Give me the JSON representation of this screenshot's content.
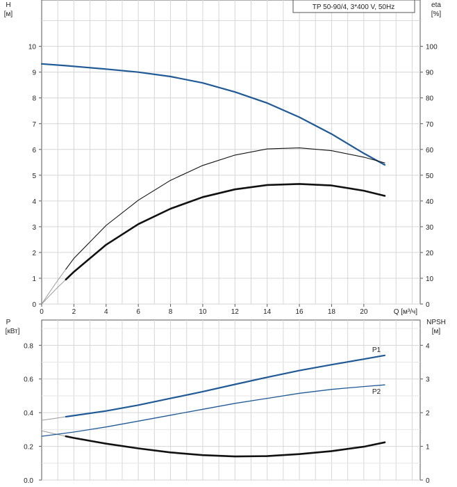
{
  "chart_data": [
    {
      "type": "line",
      "title": "TP 50-90/4, 3*400 V, 50Hz",
      "x_axis": {
        "label": "Q [м³/ч]",
        "range": [
          0,
          23.5
        ],
        "ticks": [
          0,
          2,
          4,
          6,
          8,
          10,
          12,
          14,
          16,
          18,
          20
        ]
      },
      "y_left": {
        "label": "H",
        "unit": "[м]",
        "range": [
          0,
          11.8
        ],
        "ticks": [
          0,
          1,
          2,
          3,
          4,
          5,
          6,
          7,
          8,
          9,
          10
        ]
      },
      "y_right": {
        "label": "eta",
        "unit": "[%]",
        "range": [
          0,
          118
        ],
        "ticks": [
          0,
          10,
          20,
          30,
          40,
          50,
          60,
          70,
          80,
          90,
          100
        ]
      },
      "grid": true,
      "series": [
        {
          "axis": "left",
          "color": "#1f5a96",
          "width": 2.2,
          "points": [
            [
              0,
              9.32
            ],
            [
              1.5,
              9.25
            ],
            [
              4,
              9.12
            ],
            [
              6,
              9.0
            ],
            [
              8,
              8.83
            ],
            [
              10,
              8.58
            ],
            [
              12,
              8.23
            ],
            [
              14,
              7.8
            ],
            [
              16,
              7.25
            ],
            [
              18,
              6.6
            ],
            [
              20,
              5.85
            ],
            [
              21.3,
              5.4
            ]
          ]
        },
        {
          "axis": "right",
          "color": "#111111",
          "width": 1.1,
          "points": [
            [
              1.5,
              13.5
            ],
            [
              2,
              17.7
            ],
            [
              4,
              30.5
            ],
            [
              6,
              40.3
            ],
            [
              8,
              48.0
            ],
            [
              10,
              53.8
            ],
            [
              12,
              57.8
            ],
            [
              14,
              60.2
            ],
            [
              16,
              60.6
            ],
            [
              18,
              59.5
            ],
            [
              20,
              57.0
            ],
            [
              21.3,
              54.8
            ]
          ]
        },
        {
          "axis": "right",
          "color": "#111111",
          "width": 2.6,
          "points": [
            [
              1.5,
              9.5
            ],
            [
              2,
              12.5
            ],
            [
              4,
              23.0
            ],
            [
              6,
              31.0
            ],
            [
              8,
              37.0
            ],
            [
              10,
              41.5
            ],
            [
              12,
              44.5
            ],
            [
              14,
              46.2
            ],
            [
              16,
              46.6
            ],
            [
              18,
              46.0
            ],
            [
              20,
              44.0
            ],
            [
              21.3,
              42.0
            ]
          ]
        }
      ],
      "extrapolation": [
        {
          "color": "#9a9a9a",
          "points": [
            [
              0,
              9.32
            ],
            [
              1.5,
              9.25
            ]
          ],
          "axis": "left"
        },
        {
          "color": "#9a9a9a",
          "points": [
            [
              0,
              0
            ],
            [
              0.5,
              4.7
            ],
            [
              1,
              9.2
            ],
            [
              1.5,
              13.5
            ]
          ],
          "axis": "right"
        },
        {
          "color": "#9a9a9a",
          "points": [
            [
              0,
              0
            ],
            [
              0.5,
              3.3
            ],
            [
              1,
              6.5
            ],
            [
              1.5,
              9.5
            ]
          ],
          "axis": "right"
        }
      ]
    },
    {
      "type": "line",
      "x_axis": {
        "range": [
          0,
          23.5
        ]
      },
      "y_left": {
        "label": "P",
        "unit": "[кВт]",
        "range": [
          0,
          0.95
        ],
        "ticks": [
          "0.0",
          "0.2",
          "0.4",
          "0.6",
          "0.8"
        ]
      },
      "y_right": {
        "label": "NPSH",
        "unit": "[м]",
        "range": [
          0,
          4.75
        ],
        "ticks": [
          0,
          1,
          2,
          3,
          4
        ]
      },
      "grid": true,
      "series": [
        {
          "name": "P1",
          "axis": "left",
          "color": "#1f5a96",
          "width": 2.2,
          "points": [
            [
              1.5,
              0.376
            ],
            [
              4,
              0.41
            ],
            [
              6,
              0.445
            ],
            [
              8,
              0.485
            ],
            [
              10,
              0.525
            ],
            [
              12,
              0.568
            ],
            [
              14,
              0.61
            ],
            [
              16,
              0.65
            ],
            [
              18,
              0.685
            ],
            [
              20,
              0.718
            ],
            [
              21.3,
              0.74
            ]
          ]
        },
        {
          "name": "P2",
          "axis": "left",
          "color": "#1f5a96",
          "width": 1.3,
          "points": [
            [
              0,
              0.26
            ],
            [
              2,
              0.285
            ],
            [
              4,
              0.315
            ],
            [
              6,
              0.35
            ],
            [
              8,
              0.385
            ],
            [
              10,
              0.42
            ],
            [
              12,
              0.455
            ],
            [
              14,
              0.485
            ],
            [
              16,
              0.515
            ],
            [
              18,
              0.538
            ],
            [
              20,
              0.555
            ],
            [
              21.3,
              0.565
            ]
          ]
        },
        {
          "name": "NPSH",
          "axis": "right",
          "color": "#111111",
          "width": 2.6,
          "points": [
            [
              1.5,
              1.3
            ],
            [
              2,
              1.25
            ],
            [
              4,
              1.08
            ],
            [
              6,
              0.94
            ],
            [
              8,
              0.82
            ],
            [
              10,
              0.74
            ],
            [
              12,
              0.7
            ],
            [
              14,
              0.71
            ],
            [
              16,
              0.77
            ],
            [
              18,
              0.86
            ],
            [
              20,
              0.99
            ],
            [
              21.3,
              1.12
            ]
          ]
        }
      ],
      "extrapolation": [
        {
          "color": "#9a9a9a",
          "points": [
            [
              0,
              0.355
            ],
            [
              0.75,
              0.365
            ],
            [
              1.5,
              0.376
            ]
          ],
          "axis": "left"
        },
        {
          "color": "#9a9a9a",
          "points": [
            [
              0,
              1.46
            ],
            [
              0.75,
              1.38
            ],
            [
              1.5,
              1.3
            ]
          ],
          "axis": "right"
        }
      ]
    }
  ]
}
